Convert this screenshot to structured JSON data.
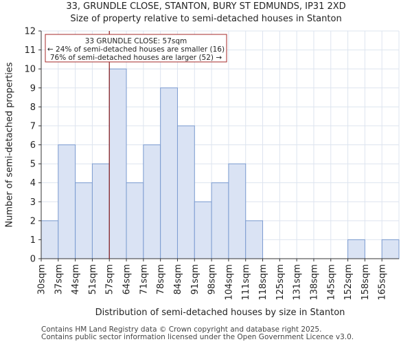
{
  "chart_data": {
    "type": "bar",
    "title_line1": "33, GRUNDLE CLOSE, STANTON, BURY ST EDMUNDS, IP31 2XD",
    "title_line2": "Size of property relative to semi-detached houses in Stanton",
    "xlabel": "Distribution of semi-detached houses by size in Stanton",
    "ylabel": "Number of semi-detached properties",
    "categories": [
      "30sqm",
      "37sqm",
      "44sqm",
      "51sqm",
      "57sqm",
      "64sqm",
      "71sqm",
      "78sqm",
      "84sqm",
      "91sqm",
      "98sqm",
      "104sqm",
      "111sqm",
      "118sqm",
      "125sqm",
      "131sqm",
      "138sqm",
      "145sqm",
      "152sqm",
      "158sqm",
      "165sqm"
    ],
    "values": [
      2,
      6,
      4,
      5,
      10,
      4,
      6,
      9,
      7,
      3,
      4,
      5,
      2,
      0,
      0,
      0,
      0,
      0,
      1,
      0,
      1
    ],
    "ylim": [
      0,
      12
    ],
    "yticks": [
      0,
      1,
      2,
      3,
      4,
      5,
      6,
      7,
      8,
      9,
      10,
      11,
      12
    ],
    "grid": true,
    "marker": {
      "position_index": 4,
      "annotation_lines": [
        "33 GRUNDLE CLOSE: 57sqm",
        "← 24% of semi-detached houses are smaller (16)",
        "76% of semi-detached houses are larger (52) →"
      ]
    },
    "colors": {
      "bar_fill": "#dae3f4",
      "bar_edge": "#7b9bd0",
      "grid": "#dde4ef",
      "marker": "#8b1a1a",
      "annotation_border": "#a52a2a"
    }
  },
  "footer": {
    "line1": "Contains HM Land Registry data © Crown copyright and database right 2025.",
    "line2": "Contains public sector information licensed under the Open Government Licence v3.0."
  }
}
